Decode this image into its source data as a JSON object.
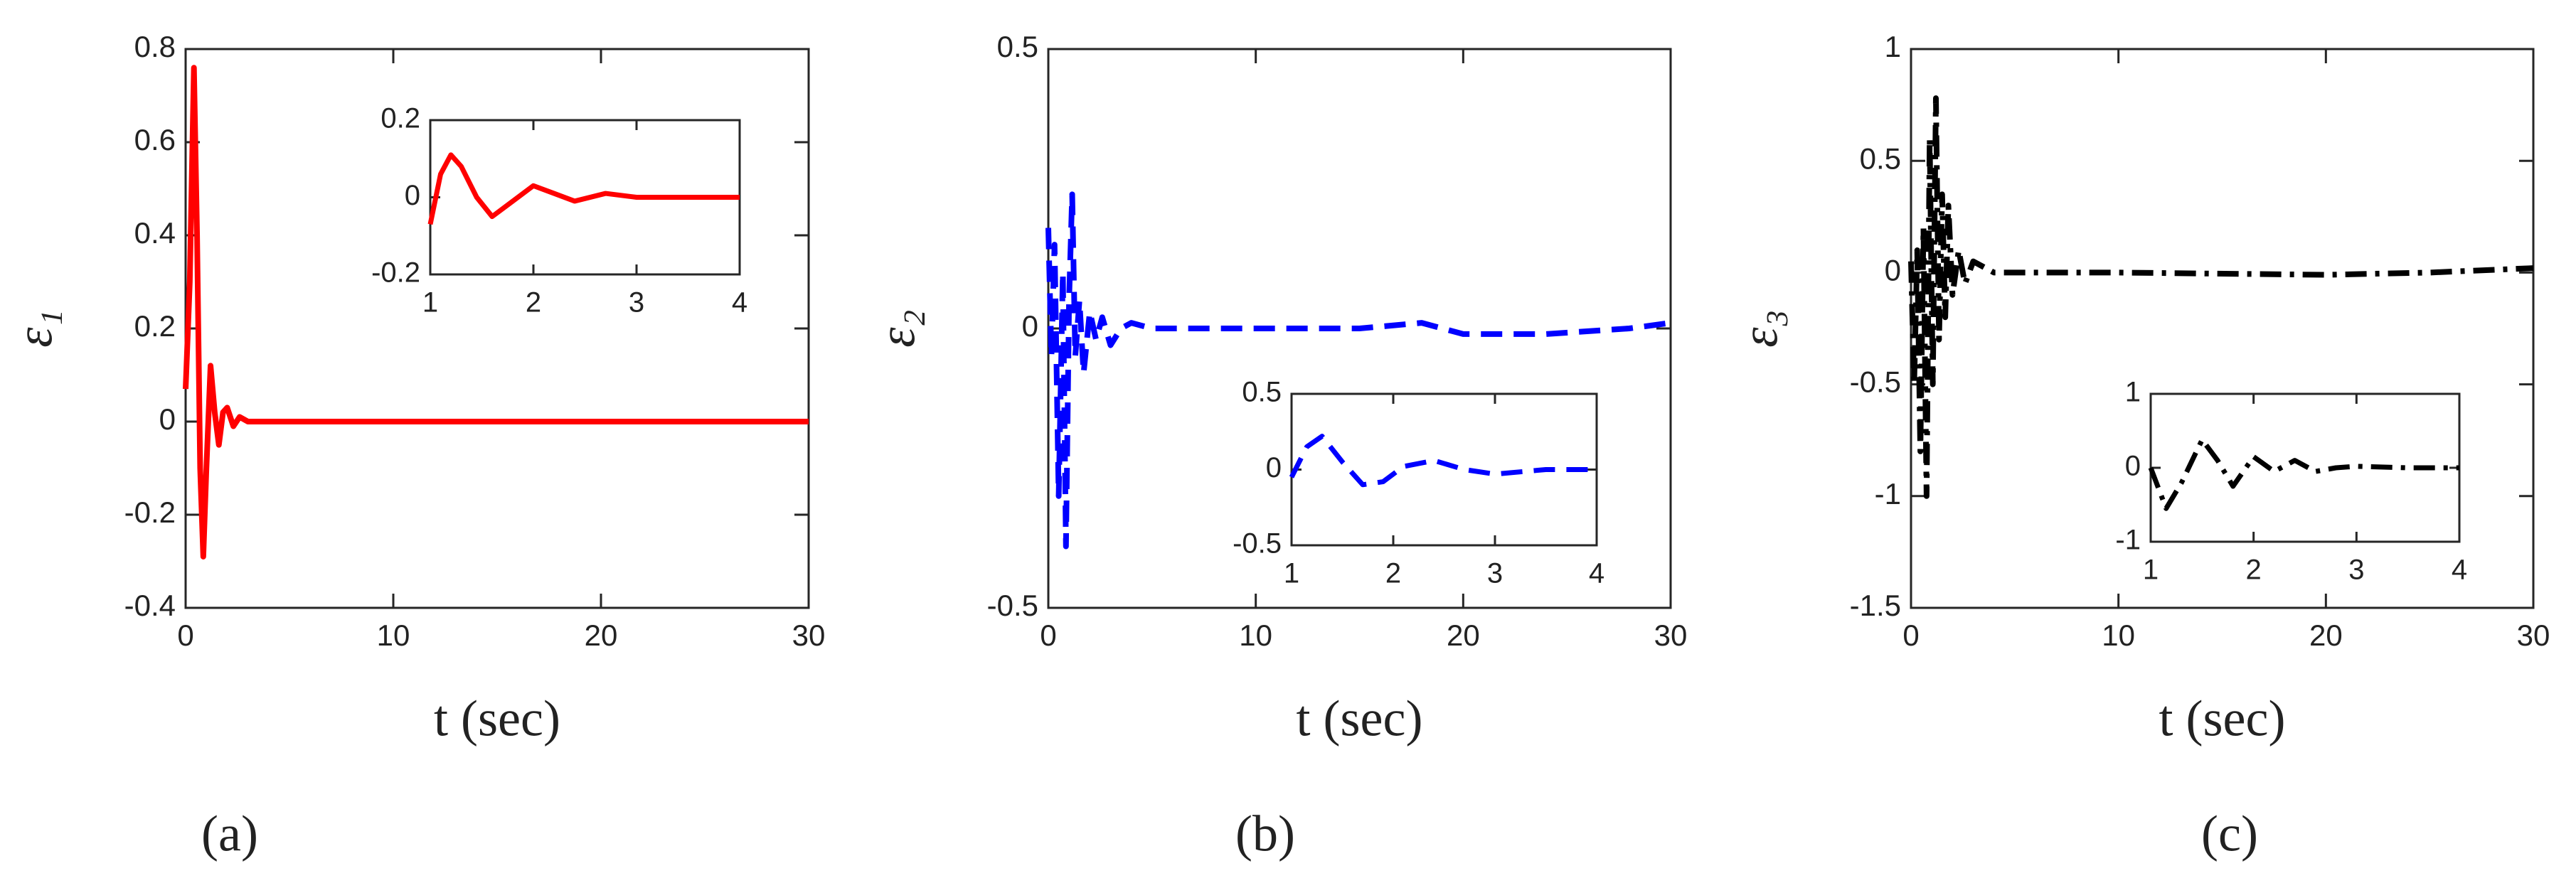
{
  "chart_data": [
    {
      "type": "line",
      "caption": "(a)",
      "ylabel": "ε₁",
      "xlabel": "t (sec)",
      "x": [
        0,
        0.2,
        0.4,
        0.55,
        0.7,
        0.85,
        1.0,
        1.2,
        1.4,
        1.6,
        1.8,
        2.0,
        2.3,
        2.6,
        3,
        4,
        5,
        10,
        20,
        30
      ],
      "values": [
        0.07,
        0.3,
        0.76,
        0.4,
        -0.1,
        -0.29,
        -0.1,
        0.12,
        0.02,
        -0.05,
        0.02,
        0.03,
        -0.01,
        0.01,
        0,
        0,
        0,
        0,
        0,
        0
      ],
      "color": "#ff0000",
      "line_style": "solid",
      "xlim": [
        0,
        30
      ],
      "xticks": [
        0,
        10,
        20,
        30
      ],
      "ylim": [
        -0.4,
        0.8
      ],
      "yticks": [
        -0.4,
        -0.2,
        0,
        0.2,
        0.4,
        0.6,
        0.8
      ]
    },
    {
      "type": "line",
      "x": [
        1,
        1.1,
        1.2,
        1.3,
        1.45,
        1.6,
        1.8,
        2.0,
        2.2,
        2.4,
        2.7,
        3,
        3.5,
        4
      ],
      "values": [
        -0.07,
        0.06,
        0.11,
        0.08,
        0,
        -0.05,
        -0.01,
        0.03,
        0.01,
        -0.01,
        0.01,
        0,
        0,
        0
      ],
      "color": "#ff0000",
      "line_style": "solid",
      "xlim": [
        1,
        4
      ],
      "xticks": [
        1,
        2,
        3,
        4
      ],
      "ylim": [
        -0.2,
        0.2
      ],
      "yticks": [
        -0.2,
        0,
        0.2
      ]
    },
    {
      "type": "line",
      "caption": "(b)",
      "ylabel": "ε₂",
      "xlabel": "t (sec)",
      "x": [
        0,
        0.15,
        0.3,
        0.5,
        0.7,
        0.85,
        1.0,
        1.15,
        1.3,
        1.5,
        1.7,
        2,
        2.3,
        2.6,
        3,
        3.5,
        4,
        5,
        10,
        15,
        18,
        20,
        24,
        28,
        30
      ],
      "values": [
        0.18,
        -0.05,
        0.15,
        -0.3,
        0.1,
        -0.39,
        0.05,
        0.24,
        -0.05,
        0.05,
        -0.08,
        0.03,
        -0.02,
        0.02,
        -0.03,
        0,
        0.01,
        0,
        0,
        0,
        0.01,
        -0.01,
        -0.01,
        0,
        0.01
      ],
      "color": "#0000ff",
      "line_style": "dashed",
      "xlim": [
        0,
        30
      ],
      "xticks": [
        0,
        10,
        20,
        30
      ],
      "ylim": [
        -0.5,
        0.5
      ],
      "yticks": [
        -0.5,
        0,
        0.5
      ]
    },
    {
      "type": "line",
      "x": [
        1,
        1.15,
        1.3,
        1.5,
        1.7,
        1.9,
        2.1,
        2.4,
        2.7,
        3,
        3.5,
        4
      ],
      "values": [
        -0.05,
        0.15,
        0.22,
        0.05,
        -0.1,
        -0.08,
        0.02,
        0.06,
        0,
        -0.03,
        0,
        0
      ],
      "color": "#0000ff",
      "line_style": "dashed",
      "xlim": [
        1,
        4
      ],
      "xticks": [
        1,
        2,
        3,
        4
      ],
      "ylim": [
        -0.5,
        0.5
      ],
      "yticks": [
        -0.5,
        0,
        0.5
      ]
    },
    {
      "type": "line",
      "caption": "(c)",
      "ylabel": "ε₃",
      "xlabel": "t (sec)",
      "x": [
        0,
        0.15,
        0.3,
        0.45,
        0.6,
        0.75,
        0.9,
        1.05,
        1.2,
        1.35,
        1.5,
        1.65,
        1.8,
        2.0,
        2.3,
        2.6,
        3,
        4,
        10,
        20,
        25,
        30
      ],
      "values": [
        0.05,
        -0.5,
        0.1,
        -0.8,
        0.2,
        -1.0,
        0.6,
        -0.5,
        0.78,
        -0.3,
        0.35,
        -0.2,
        0.3,
        -0.1,
        0.1,
        -0.05,
        0.05,
        0,
        0,
        -0.01,
        0,
        0.02
      ],
      "color": "#000000",
      "line_style": "dashdot",
      "xlim": [
        0,
        30
      ],
      "xticks": [
        0,
        10,
        20,
        30
      ],
      "ylim": [
        -1.5,
        1
      ],
      "yticks": [
        -1.5,
        -1,
        -0.5,
        0,
        0.5,
        1
      ]
    },
    {
      "type": "line",
      "x": [
        1,
        1.15,
        1.3,
        1.5,
        1.65,
        1.8,
        2.0,
        2.2,
        2.4,
        2.6,
        2.8,
        3,
        3.5,
        4
      ],
      "values": [
        0,
        -0.55,
        -0.2,
        0.38,
        0.1,
        -0.25,
        0.15,
        -0.05,
        0.1,
        -0.05,
        0,
        0.02,
        0,
        0
      ],
      "color": "#000000",
      "line_style": "dashdot",
      "xlim": [
        1,
        4
      ],
      "xticks": [
        1,
        2,
        3,
        4
      ],
      "ylim": [
        -1,
        1
      ],
      "yticks": [
        -1,
        0,
        1
      ]
    }
  ]
}
